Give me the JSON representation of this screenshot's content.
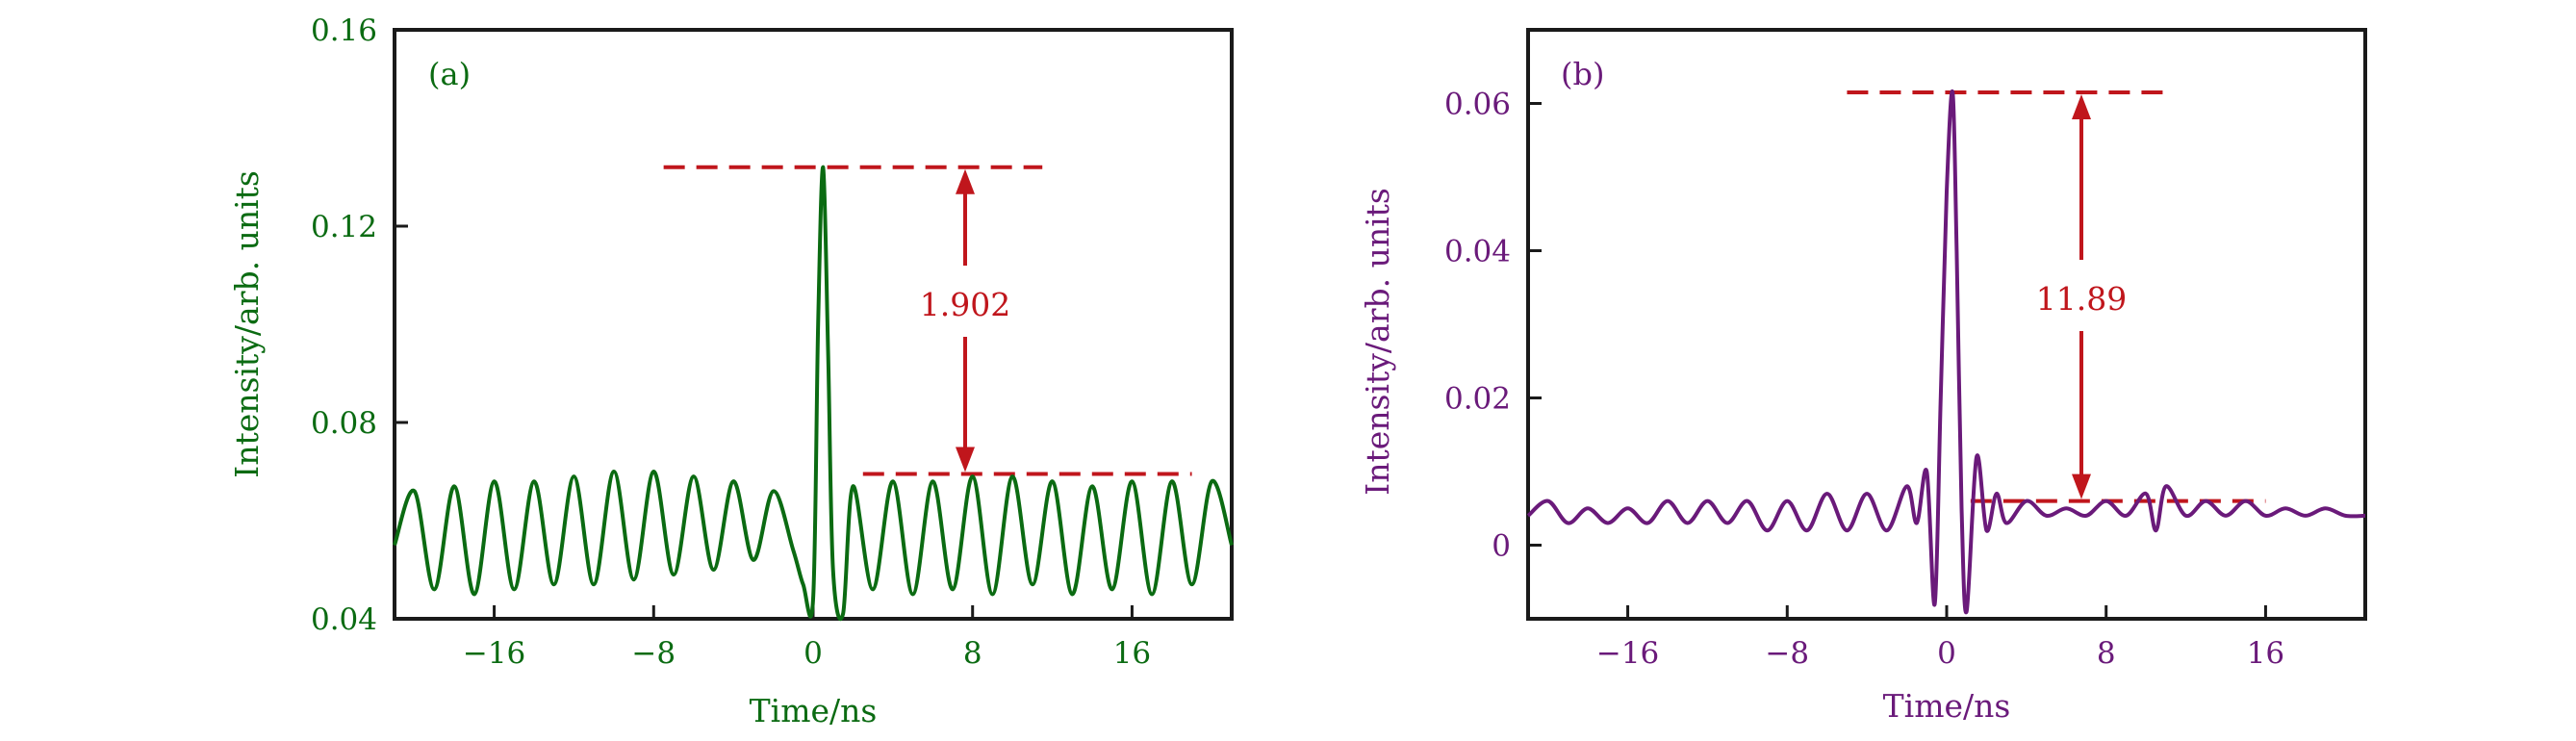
{
  "chart_data": [
    {
      "type": "line",
      "panel_label": "(a)",
      "xlabel": "Time/ns",
      "ylabel": "Intensity/arb. units",
      "xlim": [
        -21,
        21
      ],
      "ylim": [
        0.04,
        0.16
      ],
      "x_ticks": [
        -16,
        -8,
        0,
        8,
        16
      ],
      "x_tick_labels": [
        "−16",
        "−8",
        "0",
        "8",
        "16"
      ],
      "y_ticks": [
        0.04,
        0.08,
        0.12,
        0.16
      ],
      "y_tick_labels": [
        "0.04",
        "0.08",
        "0.12",
        "0.16"
      ],
      "color": "#0b6b12",
      "annotation_color": "#c0161c",
      "peak_value": 0.132,
      "background_level": 0.0695,
      "annotation": "1.902",
      "series": [
        {
          "x": [
            -21,
            -20,
            -19,
            -18,
            -17,
            -16,
            -15,
            -14,
            -13,
            -12,
            -11,
            -10,
            -9,
            -8,
            -7,
            -6,
            -5,
            -4,
            -3,
            -2,
            -1,
            -0.5,
            0,
            0.25,
            0.5,
            0.75,
            1,
            1.5,
            2,
            3,
            4,
            5,
            6,
            7,
            8,
            9,
            10,
            11,
            12,
            13,
            14,
            15,
            16,
            17,
            18,
            19,
            20,
            21
          ],
          "y": [
            0.055,
            0.066,
            0.046,
            0.067,
            0.045,
            0.068,
            0.046,
            0.068,
            0.047,
            0.069,
            0.047,
            0.07,
            0.048,
            0.07,
            0.049,
            0.069,
            0.05,
            0.068,
            0.052,
            0.066,
            0.054,
            0.047,
            0.044,
            0.1,
            0.132,
            0.095,
            0.05,
            0.041,
            0.067,
            0.046,
            0.068,
            0.045,
            0.068,
            0.046,
            0.069,
            0.045,
            0.069,
            0.047,
            0.068,
            0.045,
            0.067,
            0.046,
            0.068,
            0.045,
            0.068,
            0.047,
            0.068,
            0.055
          ]
        }
      ]
    },
    {
      "type": "line",
      "panel_label": "(b)",
      "xlabel": "Time/ns",
      "ylabel": "Intensity/arb. units",
      "xlim": [
        -21,
        21
      ],
      "ylim": [
        -0.01,
        0.07
      ],
      "x_ticks": [
        -16,
        -8,
        0,
        8,
        16
      ],
      "x_tick_labels": [
        "−16",
        "−8",
        "0",
        "8",
        "16"
      ],
      "y_ticks": [
        0,
        0.02,
        0.04,
        0.06
      ],
      "y_tick_labels": [
        "0",
        "0.02",
        "0.04",
        "0.06"
      ],
      "color": "#6a1a7a",
      "annotation_color": "#c0161c",
      "peak_value": 0.0615,
      "background_level": 0.006,
      "annotation": "11.89",
      "series": [
        {
          "x": [
            -21,
            -20,
            -19,
            -18,
            -17,
            -16,
            -15,
            -14,
            -13,
            -12,
            -11,
            -10,
            -9,
            -8,
            -7,
            -6,
            -5,
            -4,
            -3,
            -2,
            -1.5,
            -1,
            -0.6,
            -0.3,
            0,
            0.3,
            0.5,
            0.75,
            1,
            1.5,
            2,
            2.5,
            3,
            4,
            5,
            6,
            7,
            8,
            9,
            10,
            10.5,
            11,
            12,
            13,
            14,
            15,
            16,
            17,
            18,
            19,
            20,
            21
          ],
          "y": [
            0.004,
            0.006,
            0.003,
            0.005,
            0.003,
            0.005,
            0.003,
            0.006,
            0.003,
            0.006,
            0.003,
            0.006,
            0.002,
            0.006,
            0.002,
            0.007,
            0.002,
            0.007,
            0.002,
            0.008,
            0.003,
            0.01,
            -0.008,
            0.02,
            0.048,
            0.0615,
            0.04,
            0.005,
            -0.009,
            0.012,
            0.002,
            0.007,
            0.003,
            0.006,
            0.004,
            0.005,
            0.004,
            0.006,
            0.004,
            0.007,
            0.002,
            0.008,
            0.004,
            0.006,
            0.004,
            0.006,
            0.004,
            0.005,
            0.004,
            0.005,
            0.004,
            0.004
          ]
        }
      ]
    }
  ]
}
